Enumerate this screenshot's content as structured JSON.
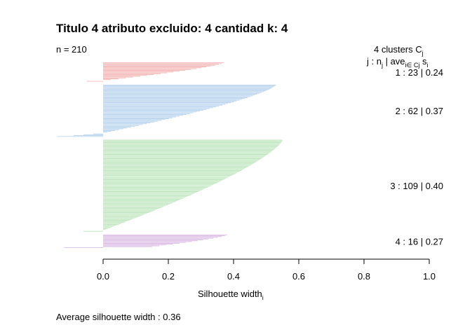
{
  "chart_data": {
    "type": "bar",
    "orientation": "horizontal",
    "title": "Titulo  4  atributo excluido:  4  cantidad k: 4",
    "n_label": "n = 210",
    "xlabel": "Silhouette width",
    "xlabel_sub": "i",
    "xlim": [
      0,
      1
    ],
    "xticks": [
      "0.0",
      "0.2",
      "0.4",
      "0.6",
      "0.8",
      "1.0"
    ],
    "legend_header": {
      "line1": "4  clusters  C",
      "line1_sub": "j",
      "line2_a": "j :  n",
      "line2_a_sub": "j",
      "line2_b": " | ave",
      "line2_b_sub": "i∈ Cj",
      "line2_c": "  s",
      "line2_c_sub": "i"
    },
    "average_text": "Average silhouette width :  0.36",
    "clusters": [
      {
        "label": "1 :   23  |  0.24",
        "n": 23,
        "avg": 0.24,
        "color": "#f4b6b6",
        "max": 0.37,
        "min_pos": 0.0,
        "negatives": [
          -0.05
        ]
      },
      {
        "label": "2 :   62  |  0.37",
        "n": 62,
        "avg": 0.37,
        "color": "#b8d3ee",
        "max": 0.53,
        "min_pos": 0.0,
        "negatives": [
          -0.03,
          -0.06,
          -0.09,
          -0.14
        ]
      },
      {
        "label": "3 :   109  |  0.40",
        "n": 109,
        "avg": 0.4,
        "color": "#bfe6bf",
        "max": 0.55,
        "min_pos": 0.0,
        "negatives": [
          -0.06
        ]
      },
      {
        "label": "4 :   16  |  0.27",
        "n": 16,
        "avg": 0.27,
        "color": "#dcbde6",
        "max": 0.38,
        "min_pos": 0.15,
        "negatives": [
          -0.12
        ]
      }
    ]
  }
}
